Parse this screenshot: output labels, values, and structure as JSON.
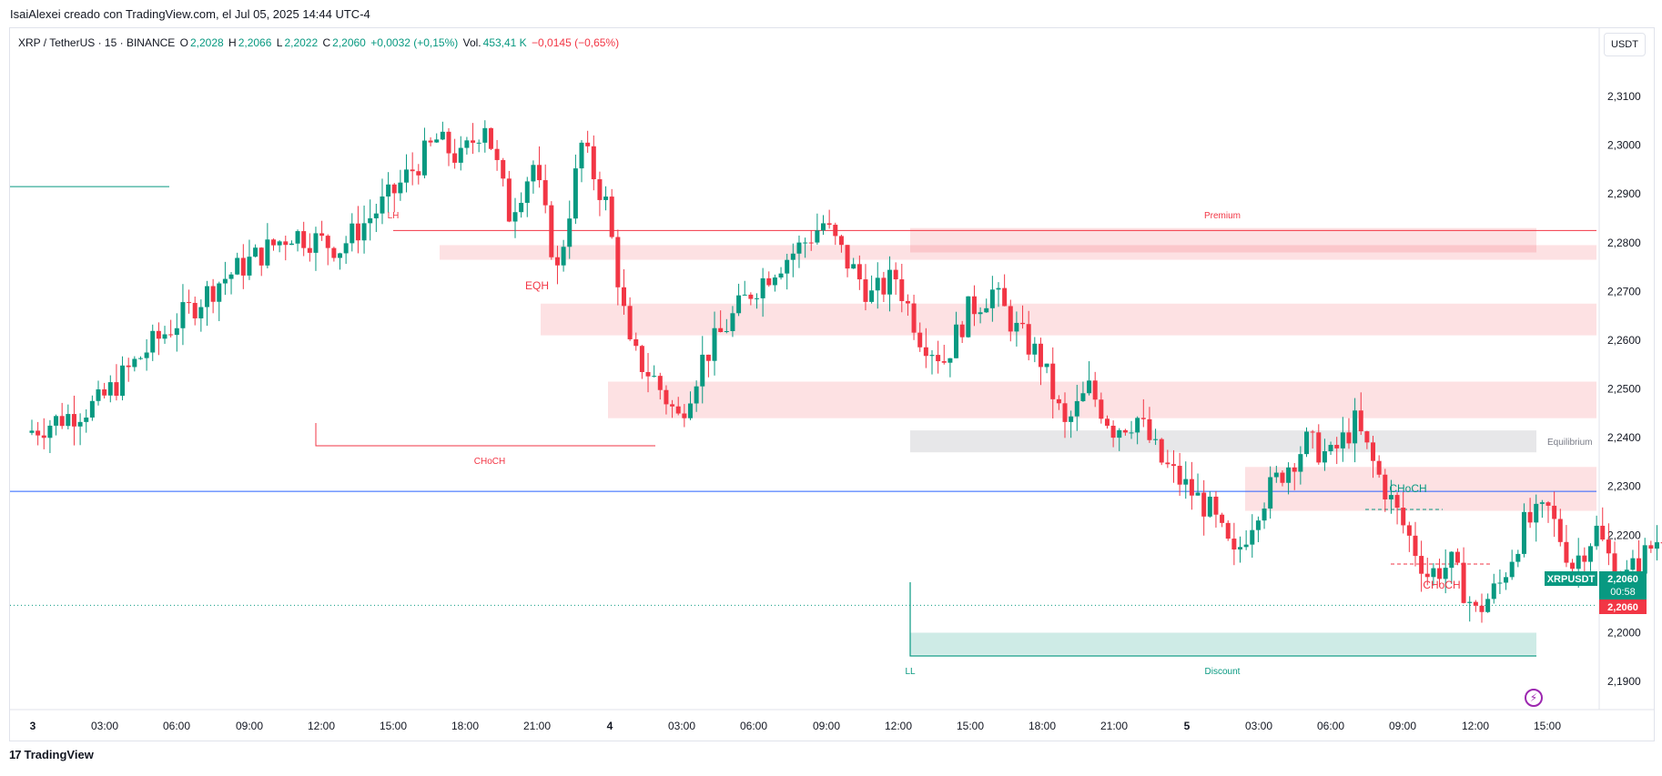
{
  "header": {
    "byline": "IsaiAlexei creado con TradingView.com, el Jul 05, 2025 14:44 UTC-4"
  },
  "legend": {
    "symbol": "XRP / TetherUS · 15 · BINANCE",
    "o_label": "O",
    "o_value": "2,2028",
    "h_label": "H",
    "h_value": "2,2066",
    "l_label": "L",
    "l_value": "2,2022",
    "c_label": "C",
    "c_value": "2,2060",
    "change": "+0,0032 (+0,15%)",
    "vol_label": "Vol.",
    "vol_value": "453,41 K",
    "vol_change": "−0,0145 (−0,65%)"
  },
  "currency_button": "USDT",
  "footer": {
    "brand": "TradingView"
  },
  "colors": {
    "up": "#089981",
    "down": "#f23645",
    "blue_line": "#2962ff",
    "zone_red": "#f23645",
    "zone_green": "#089981",
    "zone_gray": "#9e9e9e"
  },
  "chart_data": {
    "type": "candlestick",
    "symbol": "XRPUSDT",
    "interval": "15",
    "ylim": [
      2.185,
      2.318
    ],
    "y_ticks": [
      "2,3100",
      "2,3000",
      "2,2900",
      "2,2800",
      "2,2700",
      "2,2600",
      "2,2500",
      "2,2400",
      "2,2300",
      "2,2200",
      "2,2100",
      "2,2000",
      "2,1900"
    ],
    "x_ticks": [
      "3",
      "03:00",
      "06:00",
      "09:00",
      "12:00",
      "15:00",
      "18:00",
      "21:00",
      "4",
      "03:00",
      "06:00",
      "09:00",
      "12:00",
      "15:00",
      "18:00",
      "21:00",
      "5",
      "03:00",
      "06:00",
      "09:00",
      "12:00",
      "15:00"
    ],
    "price_path": [
      [
        0,
        2.241
      ],
      [
        3,
        2.247
      ],
      [
        5,
        2.258
      ],
      [
        8,
        2.272
      ],
      [
        11,
        2.282
      ],
      [
        13,
        2.279
      ],
      [
        15,
        2.289
      ],
      [
        17,
        2.301
      ],
      [
        18,
        2.297
      ],
      [
        19,
        2.305
      ],
      [
        20,
        2.286
      ],
      [
        21,
        2.296
      ],
      [
        22,
        2.274
      ],
      [
        23,
        2.3
      ],
      [
        24,
        2.288
      ],
      [
        25,
        2.258
      ],
      [
        26,
        2.252
      ],
      [
        27,
        2.244
      ],
      [
        28,
        2.256
      ],
      [
        30,
        2.27
      ],
      [
        31,
        2.275
      ],
      [
        32,
        2.279
      ],
      [
        33,
        2.284
      ],
      [
        34,
        2.276
      ],
      [
        35,
        2.269
      ],
      [
        36,
        2.273
      ],
      [
        37,
        2.261
      ],
      [
        38,
        2.256
      ],
      [
        39,
        2.266
      ],
      [
        40,
        2.27
      ],
      [
        41,
        2.262
      ],
      [
        42,
        2.256
      ],
      [
        43,
        2.242
      ],
      [
        44,
        2.25
      ],
      [
        45,
        2.242
      ],
      [
        46,
        2.244
      ],
      [
        47,
        2.235
      ],
      [
        48,
        2.23
      ],
      [
        49,
        2.225
      ],
      [
        50,
        2.215
      ],
      [
        51,
        2.226
      ],
      [
        52,
        2.233
      ],
      [
        53,
        2.239
      ],
      [
        54,
        2.236
      ],
      [
        55,
        2.243
      ],
      [
        56,
        2.232
      ],
      [
        57,
        2.222
      ],
      [
        58,
        2.212
      ],
      [
        59,
        2.214
      ],
      [
        60,
        2.204
      ],
      [
        61,
        2.21
      ],
      [
        62,
        2.222
      ],
      [
        63,
        2.225
      ],
      [
        64,
        2.214
      ],
      [
        65,
        2.221
      ],
      [
        66,
        2.21
      ],
      [
        67,
        2.216
      ],
      [
        68,
        2.222
      ],
      [
        69,
        2.211
      ],
      [
        70,
        2.219
      ],
      [
        71,
        2.215
      ],
      [
        72,
        2.211
      ],
      [
        73,
        2.224
      ],
      [
        74,
        2.23
      ],
      [
        75,
        2.221
      ],
      [
        76,
        2.214
      ],
      [
        77,
        2.21
      ],
      [
        78,
        2.22
      ],
      [
        79,
        2.213
      ],
      [
        80,
        2.219
      ],
      [
        81,
        2.222
      ],
      [
        82,
        2.213
      ],
      [
        83,
        2.206
      ],
      [
        84,
        2.201
      ]
    ],
    "last_candle": {
      "open": 2.2028,
      "high": 2.2066,
      "low": 2.2022,
      "close": 2.206
    },
    "price_labels": {
      "symbol": "XRPUSDT",
      "last": "2,2060",
      "countdown": "00:58",
      "prev": "2,2060"
    },
    "horizontal_lines": [
      {
        "name": "high-level-line",
        "price": 2.2915,
        "color": "#089981"
      },
      {
        "name": "blue-level-line",
        "price": 2.229,
        "color": "#2962ff"
      },
      {
        "name": "lh-level-line",
        "price": 2.2825,
        "color": "#f23645"
      }
    ],
    "zones": [
      {
        "name": "premium-zone",
        "label": "Premium",
        "top": 2.283,
        "bottom": 2.278,
        "color": "red"
      },
      {
        "name": "supply-zone-1",
        "top": 2.2795,
        "bottom": 2.2765,
        "color": "red"
      },
      {
        "name": "supply-zone-2",
        "top": 2.2675,
        "bottom": 2.261,
        "color": "red"
      },
      {
        "name": "supply-zone-3",
        "top": 2.2515,
        "bottom": 2.244,
        "color": "red"
      },
      {
        "name": "equilibrium-zone",
        "label": "Equilibrium",
        "top": 2.2415,
        "bottom": 2.237,
        "color": "gray"
      },
      {
        "name": "supply-zone-4",
        "top": 2.234,
        "bottom": 2.225,
        "color": "red"
      },
      {
        "name": "discount-zone",
        "label": "Discount",
        "top": 2.2,
        "bottom": 2.1955,
        "color": "green"
      }
    ],
    "annotations": [
      {
        "name": "lh-label",
        "text": "LH",
        "color": "#f23645"
      },
      {
        "name": "eqh-label",
        "text": "EQH",
        "color": "#f23645"
      },
      {
        "name": "choch-label-1",
        "text": "CHoCH",
        "color": "#f23645"
      },
      {
        "name": "ll-label",
        "text": "LL",
        "color": "#089981"
      },
      {
        "name": "choch-label-2",
        "text": "CHoCH",
        "color": "#089981"
      },
      {
        "name": "choch-label-3",
        "text": "CHoCH",
        "color": "#f23645"
      },
      {
        "name": "premium-label",
        "text": "Premium",
        "color": "#f23645"
      },
      {
        "name": "discount-label",
        "text": "Discount",
        "color": "#089981"
      },
      {
        "name": "equilibrium-label",
        "text": "Equilibrium",
        "color": "#787b86"
      }
    ]
  }
}
